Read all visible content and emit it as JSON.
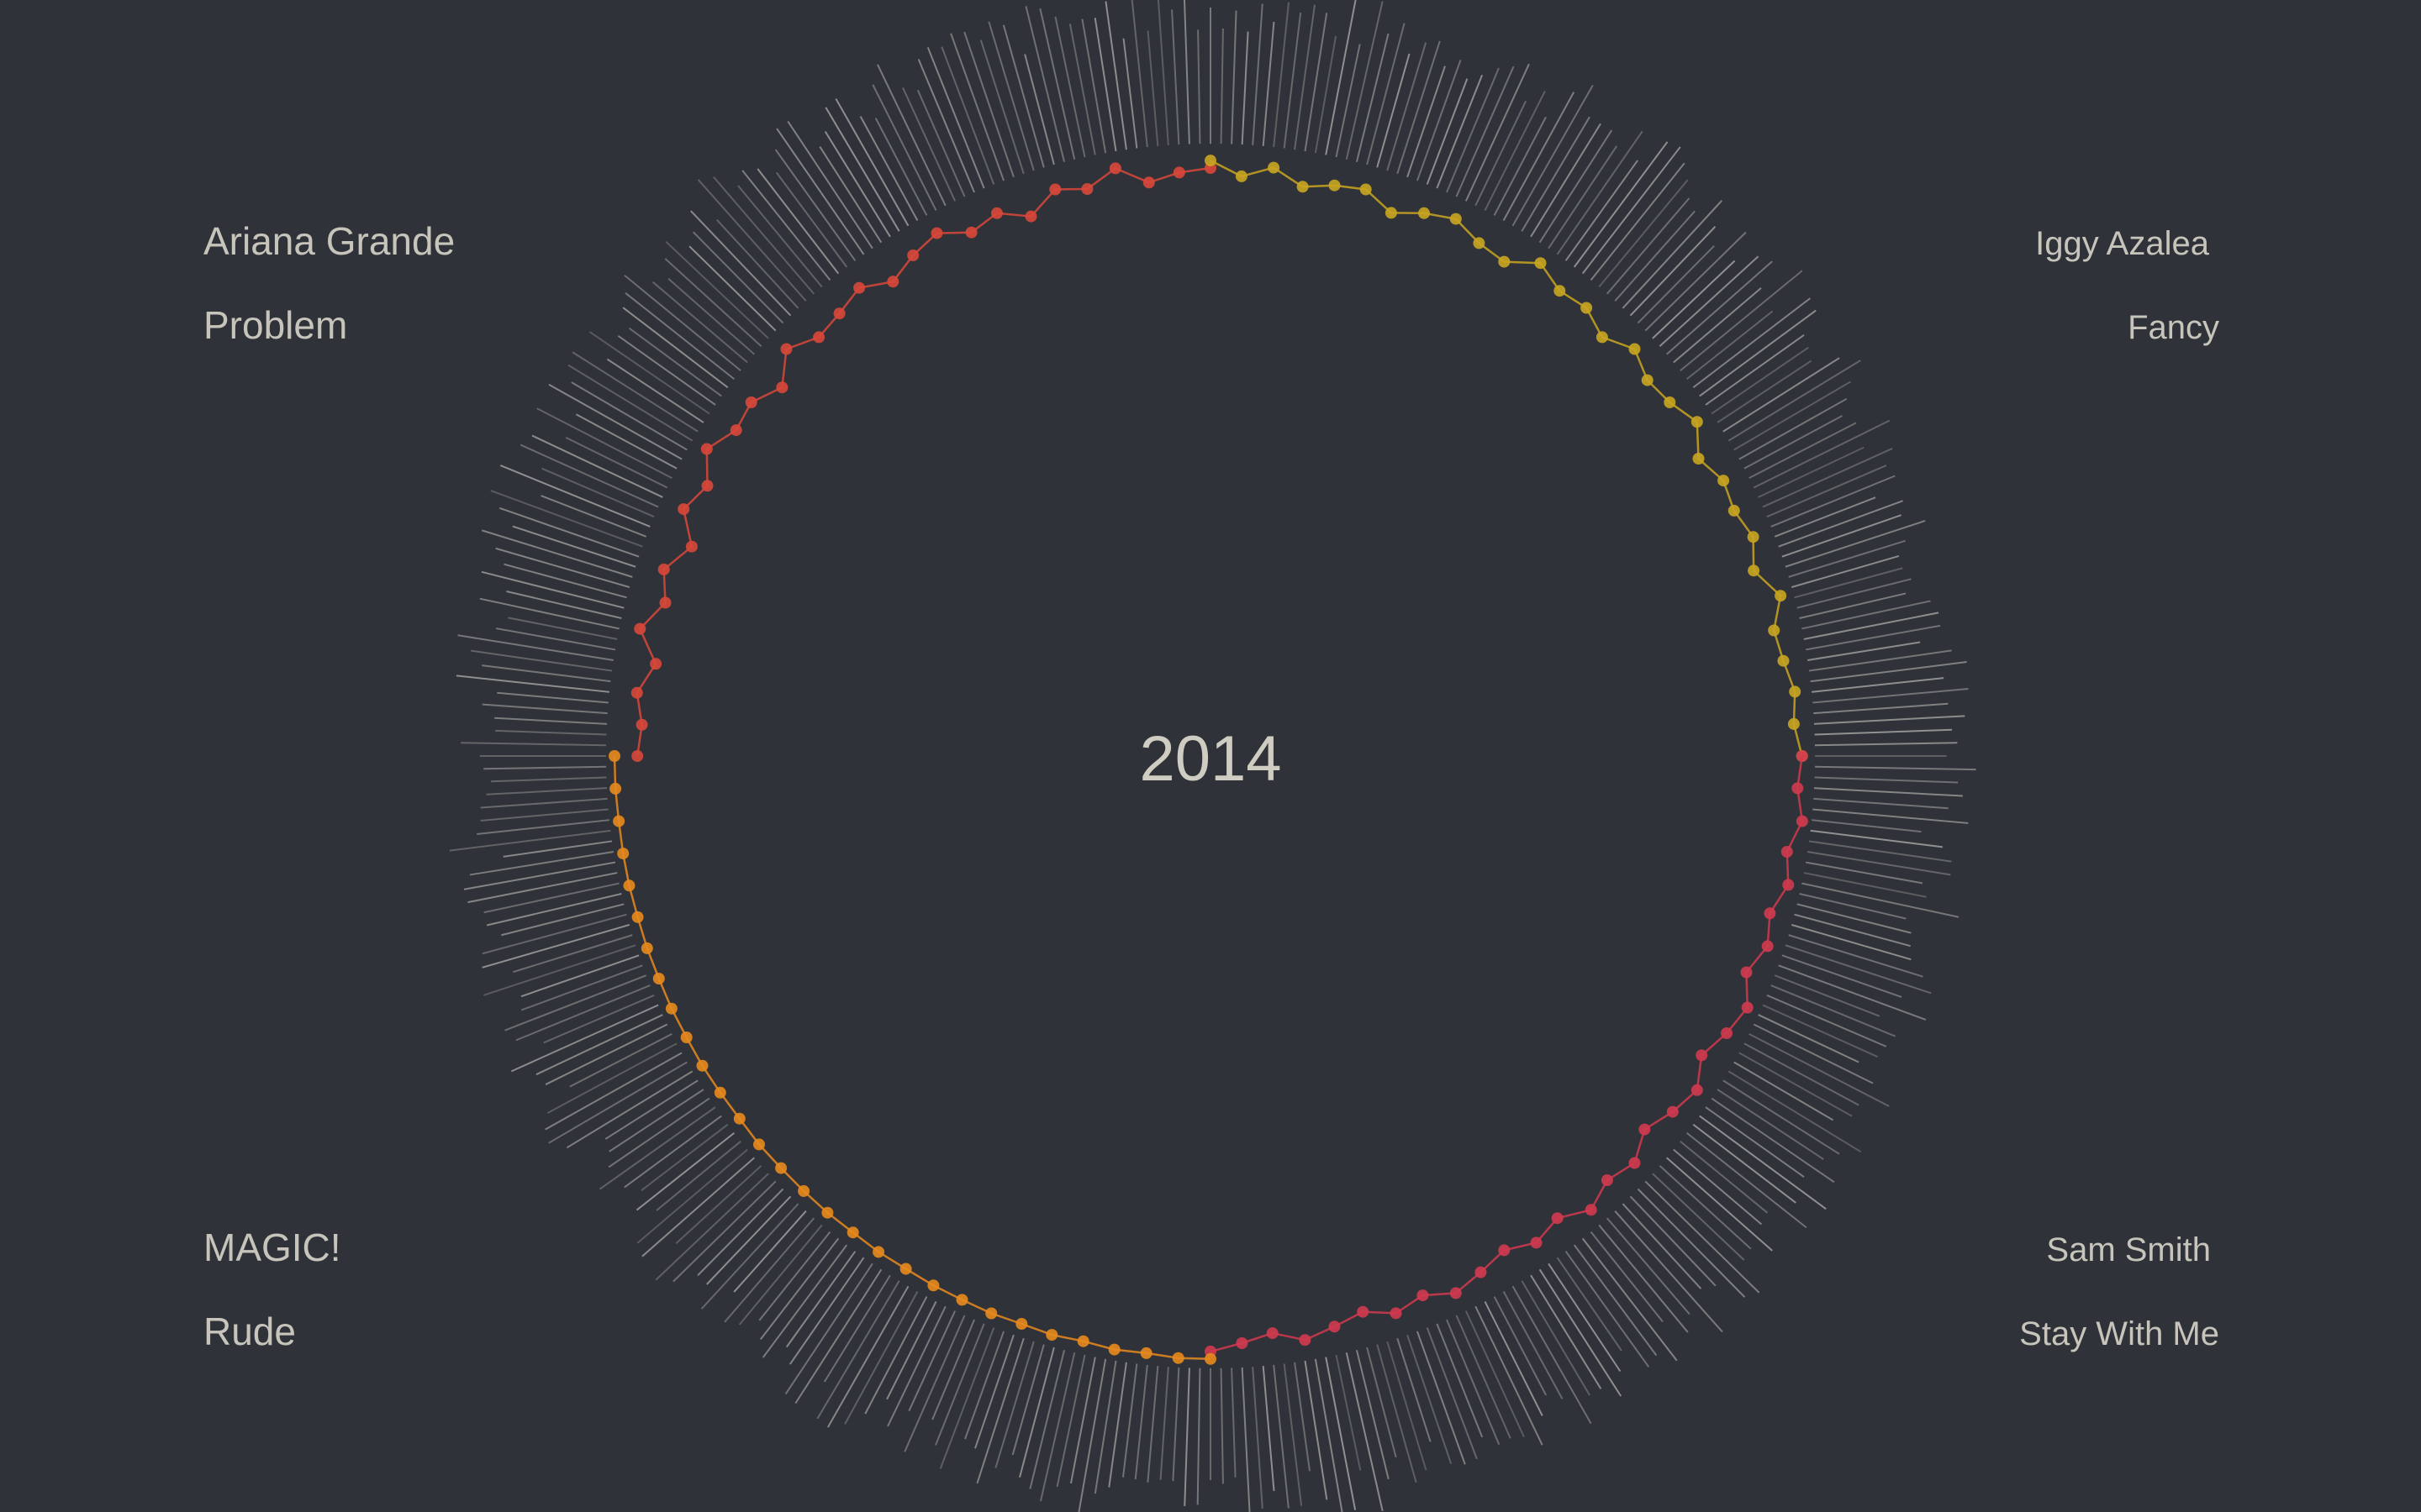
{
  "year": "2014",
  "quadrants": {
    "top_left": {
      "artist": "Ariana Grande",
      "title": "Problem",
      "color": "#d9483a"
    },
    "top_right": {
      "artist": "Iggy Azalea",
      "title": "Fancy",
      "color": "#c9a521"
    },
    "bottom_right": {
      "artist": "Sam Smith",
      "title": "Stay With Me",
      "color": "#d23a4f"
    },
    "bottom_left": {
      "artist": "MAGIC!",
      "title": "Rude",
      "color": "#e8891e"
    }
  },
  "chart_data": {
    "type": "radial-line",
    "title": "2014",
    "series": [
      {
        "name": "Problem",
        "color": "#d9483a",
        "values": [
          0.55,
          0.6,
          0.5,
          0.7,
          0.4,
          0.65,
          0.5,
          0.75,
          0.45,
          0.6,
          0.35,
          0.55,
          0.5,
          0.7,
          0.4,
          0.6,
          0.55,
          0.45,
          0.65,
          0.5,
          0.4,
          0.6,
          0.5,
          0.7,
          0.45,
          0.55,
          0.35,
          0.6,
          0.5,
          0.45
        ]
      },
      {
        "name": "Fancy",
        "color": "#c9a521",
        "values": [
          0.35,
          0.55,
          0.4,
          0.6,
          0.5,
          0.45,
          0.65,
          0.5,
          0.4,
          0.55,
          0.6,
          0.35,
          0.5,
          0.45,
          0.6,
          0.4,
          0.55,
          0.5,
          0.35,
          0.6,
          0.45,
          0.5,
          0.4,
          0.55,
          0.3,
          0.5,
          0.45,
          0.35,
          0.4,
          0.3
        ]
      },
      {
        "name": "Stay With Me",
        "color": "#d23a4f",
        "values": [
          0.3,
          0.35,
          0.25,
          0.4,
          0.3,
          0.45,
          0.35,
          0.5,
          0.3,
          0.4,
          0.55,
          0.35,
          0.45,
          0.6,
          0.4,
          0.5,
          0.35,
          0.55,
          0.45,
          0.6,
          0.5,
          0.4,
          0.55,
          0.45,
          0.6,
          0.5,
          0.4,
          0.55,
          0.45,
          0.35
        ]
      },
      {
        "name": "Rude",
        "color": "#e8891e",
        "values": [
          0.25,
          0.25,
          0.28,
          0.27,
          0.3,
          0.28,
          0.3,
          0.29,
          0.3,
          0.3,
          0.31,
          0.3,
          0.31,
          0.3,
          0.3,
          0.3,
          0.29,
          0.3,
          0.29,
          0.28,
          0.28,
          0.27,
          0.27,
          0.26,
          0.26,
          0.25,
          0.25,
          0.25,
          0.24,
          0.24
        ]
      }
    ]
  }
}
